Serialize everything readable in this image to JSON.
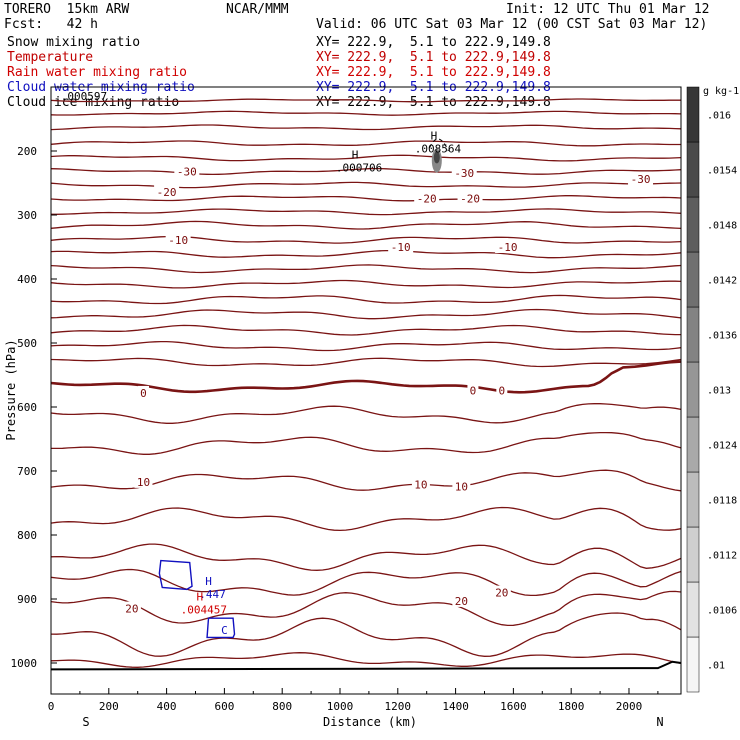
{
  "header": {
    "model": "TORERO  15km ARW",
    "org": "NCAR/MMM",
    "init": "Init: 12 UTC Thu 01 Mar 12",
    "fcst": "Fcst:   42 h",
    "valid": "Valid: 06 UTC Sat 03 Mar 12 (00 CST Sat 03 Mar 12)"
  },
  "fields": [
    {
      "name": "Snow mixing ratio",
      "xy": "XY= 222.9,  5.1 to 222.9,149.8",
      "color": "#000000"
    },
    {
      "name": "Temperature",
      "xy": "XY= 222.9,  5.1 to 222.9,149.8",
      "color": "#c00000"
    },
    {
      "name": "Rain water mixing ratio",
      "xy": "XY= 222.9,  5.1 to 222.9,149.8",
      "color": "#d00000"
    },
    {
      "name": "Cloud water mixing ratio",
      "xy": "XY= 222.9,  5.1 to 222.9,149.8",
      "color": "#1010c0"
    },
    {
      "name": "Cloud ice mixing ratio",
      "xy": "XY= 222.9,  5.1 to 222.9,149.8",
      "color": "#000000"
    }
  ],
  "chart_data": {
    "type": "line",
    "xlabel": "Distance (km)",
    "ylabel": "Pressure (hPa)",
    "xlim": [
      0,
      2180
    ],
    "ylim": [
      1050,
      100
    ],
    "x_ticks": [
      0,
      200,
      400,
      600,
      800,
      1000,
      1200,
      1400,
      1600,
      1800,
      2000
    ],
    "y_ticks": [
      200,
      300,
      400,
      500,
      600,
      700,
      800,
      900,
      1000
    ],
    "end_labels": {
      "left": "S",
      "right": "N"
    },
    "isotherm_labels": [
      {
        "x": 470,
        "p": 232,
        "text": "-30"
      },
      {
        "x": 1430,
        "p": 234,
        "text": "-30"
      },
      {
        "x": 2040,
        "p": 244,
        "text": "-30"
      },
      {
        "x": 400,
        "p": 264,
        "text": "-20"
      },
      {
        "x": 1300,
        "p": 274,
        "text": "-20"
      },
      {
        "x": 1450,
        "p": 274,
        "text": "-20"
      },
      {
        "x": 440,
        "p": 339,
        "text": "-10"
      },
      {
        "x": 1210,
        "p": 350,
        "text": "-10"
      },
      {
        "x": 1580,
        "p": 350,
        "text": "-10"
      },
      {
        "x": 320,
        "p": 578,
        "text": "0"
      },
      {
        "x": 1460,
        "p": 574,
        "text": "0"
      },
      {
        "x": 1560,
        "p": 574,
        "text": "0"
      },
      {
        "x": 320,
        "p": 717,
        "text": "10"
      },
      {
        "x": 1280,
        "p": 721,
        "text": "10"
      },
      {
        "x": 1420,
        "p": 724,
        "text": "10"
      },
      {
        "x": 280,
        "p": 915,
        "text": "20"
      },
      {
        "x": 1420,
        "p": 903,
        "text": "20"
      },
      {
        "x": 1560,
        "p": 890,
        "text": "20"
      }
    ],
    "extrema": [
      {
        "x": 1325,
        "p": 182,
        "mark": "H",
        "value": ".008564",
        "color": "#000000"
      },
      {
        "x": 1052,
        "p": 212,
        "mark": "H",
        "value": ".000706",
        "color": "#000000"
      },
      {
        "x": 100,
        "p": 100,
        "mark": "",
        "value": ".000597",
        "color": "#000000"
      },
      {
        "x": 545,
        "p": 878,
        "mark": "H",
        "value": ".447",
        "color": "#1010c0"
      },
      {
        "x": 515,
        "p": 902,
        "mark": "H",
        "value": ".004457",
        "color": "#d00000"
      },
      {
        "x": 600,
        "p": 955,
        "mark": "C",
        "value": "",
        "color": "#1010c0"
      }
    ],
    "colorbar": {
      "units": "g kg-1",
      "labels": [
        ".01",
        ".0106",
        ".0112",
        ".0118",
        ".0124",
        ".013",
        ".0136",
        ".0142",
        ".0148",
        ".0154",
        ".016"
      ]
    }
  }
}
